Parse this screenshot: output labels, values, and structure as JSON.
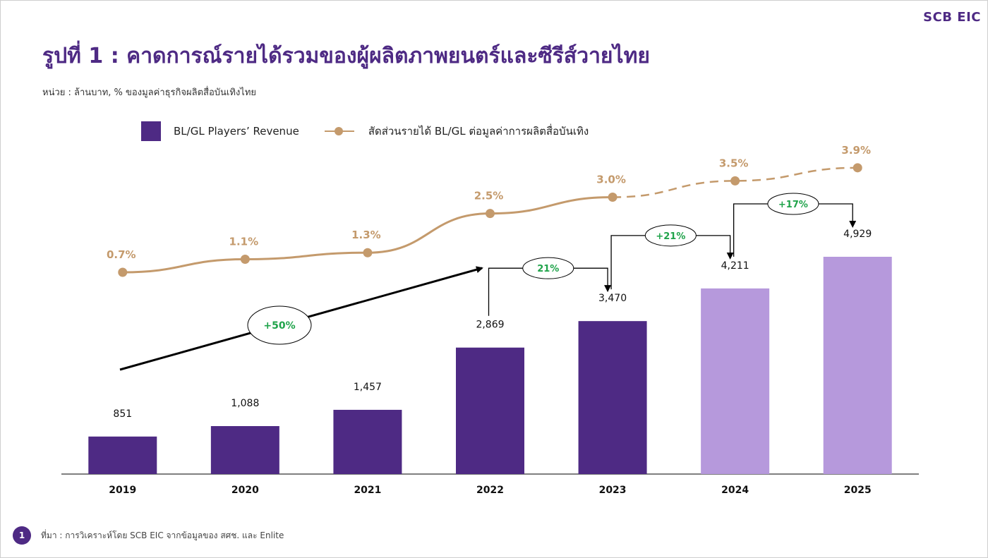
{
  "logo": "SCB EIC",
  "title": "รูปที่ 1 : คาดการณ์รายได้รวมของผู้ผลิตภาพยนตร์และซีรีส์วายไทย",
  "unit": "หน่วย : ล้านบาท, % ของมูลค่าธุรกิจผลิตสื่อบันเทิงไทย",
  "legend": {
    "bar_label": "BL/GL Players’ Revenue",
    "line_label": "สัดส่วนรายได้ BL/GL ต่อมูลค่าการผลิตสื่อบันเทิง"
  },
  "page_number": "1",
  "source": "ที่มา : การวิเคราะห์โดย SCB EIC จากข้อมูลของ สศช. และ Enlite",
  "colors": {
    "actual_bar": "#4e2a84",
    "forecast_bar": "#b699dc",
    "share_line": "#c49a6c",
    "growth_text": "#1fa34a"
  },
  "chart_data": {
    "type": "bar",
    "categories": [
      "2019",
      "2020",
      "2021",
      "2022",
      "2023",
      "2024",
      "2025"
    ],
    "series": [
      {
        "name": "BL/GL Players’ Revenue",
        "values": [
          851,
          1088,
          1457,
          2869,
          3470,
          4211,
          4929
        ],
        "labels": [
          "851",
          "1,088",
          "1,457",
          "2,869",
          "3,470",
          "4,211",
          "4,929"
        ],
        "forecast_from_index": 5
      },
      {
        "name": "สัดส่วนรายได้ BL/GL ต่อมูลค่าการผลิตสื่อบันเทิง",
        "type": "line",
        "values": [
          0.7,
          1.1,
          1.3,
          2.5,
          3.0,
          3.5,
          3.9
        ],
        "labels": [
          "0.7%",
          "1.1%",
          "1.3%",
          "2.5%",
          "3.0%",
          "3.5%",
          "3.9%"
        ],
        "dashed_from_index": 4
      }
    ],
    "annotations": [
      {
        "from": "2019",
        "to": "2022",
        "text": "+50%"
      },
      {
        "from": "2022",
        "to": "2023",
        "text": "21%"
      },
      {
        "from": "2023",
        "to": "2024",
        "text": "+21%"
      },
      {
        "from": "2024",
        "to": "2025",
        "text": "+17%"
      }
    ],
    "legend_position": "top-left",
    "grid": false
  }
}
